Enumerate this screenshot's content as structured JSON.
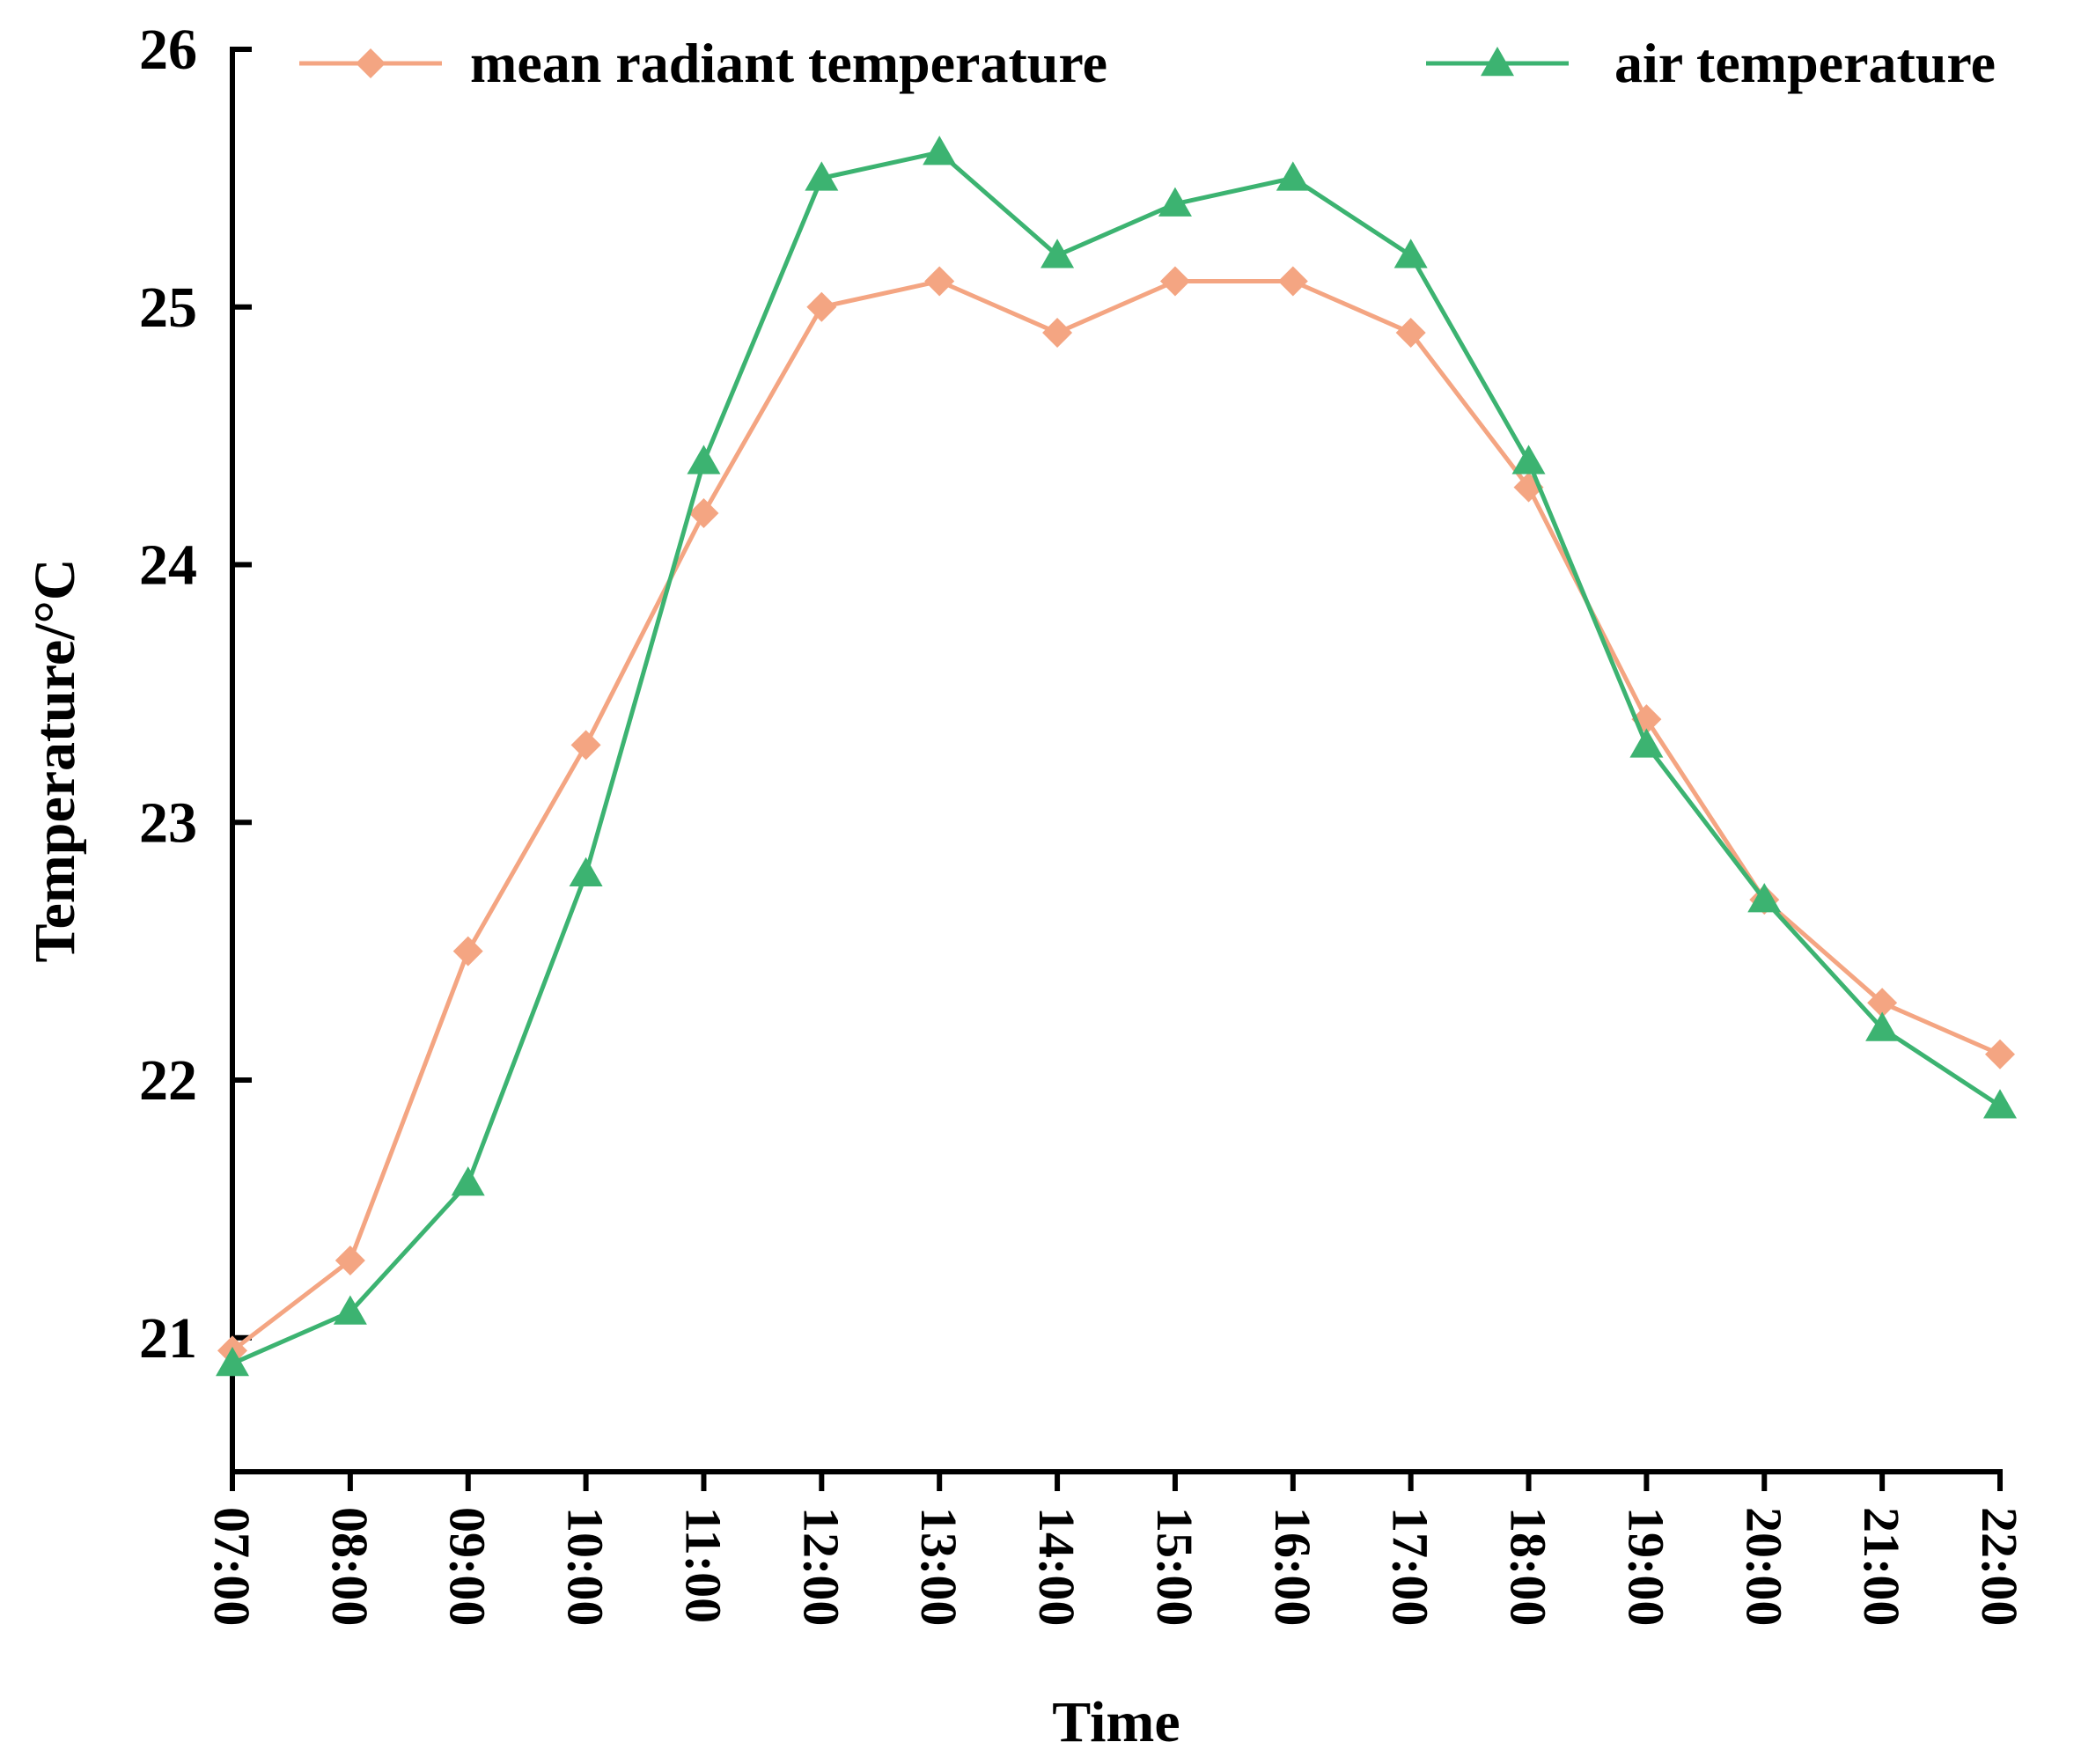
{
  "chart_data": {
    "type": "line",
    "title": "",
    "xlabel": "Time",
    "ylabel": "Temperature/°C",
    "categories": [
      "07:00",
      "08:00",
      "09:00",
      "10:00",
      "11:00",
      "12:00",
      "13:00",
      "14:00",
      "15:00",
      "16:00",
      "17:00",
      "18:00",
      "19:00",
      "20:00",
      "21:00",
      "22:00"
    ],
    "yticks": [
      21,
      22,
      23,
      24,
      25,
      26
    ],
    "ylim": [
      20.48,
      26
    ],
    "grid": false,
    "legend_position": "top",
    "series": [
      {
        "name": "mean radiant temperature",
        "color": "#F4A582",
        "marker": "diamond",
        "values": [
          20.95,
          21.3,
          22.5,
          23.3,
          24.2,
          25.0,
          25.1,
          24.9,
          25.1,
          25.1,
          24.9,
          24.3,
          23.4,
          22.7,
          22.3,
          22.1
        ]
      },
      {
        "name": "air temperature",
        "color": "#3CB371",
        "marker": "triangle",
        "values": [
          20.9,
          21.1,
          21.6,
          22.8,
          24.4,
          25.5,
          25.6,
          25.2,
          25.4,
          25.5,
          25.2,
          24.4,
          23.3,
          22.7,
          22.2,
          21.9
        ]
      }
    ]
  }
}
